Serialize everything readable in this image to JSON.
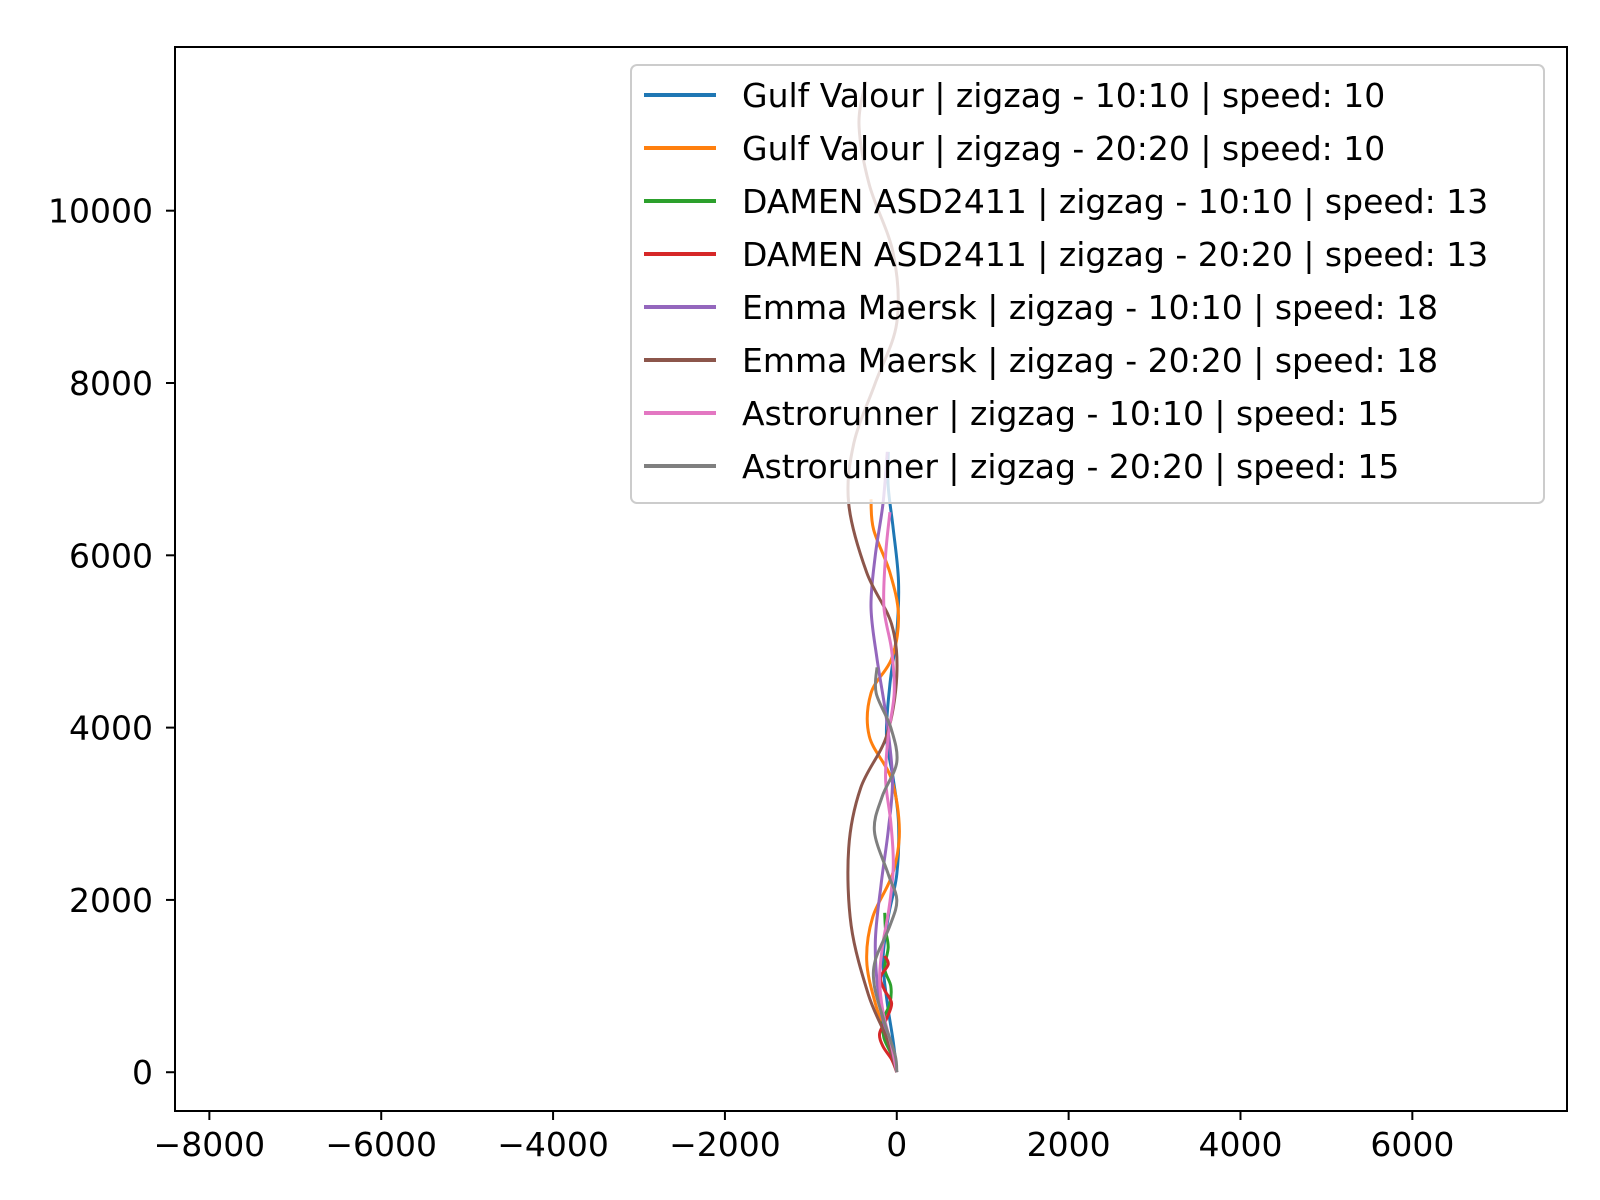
{
  "chart_data": {
    "type": "line",
    "title": "",
    "xlabel": "",
    "ylabel": "",
    "xlim": [
      -8400,
      7800
    ],
    "ylim": [
      -450,
      11900
    ],
    "xticks": [
      -8000,
      -6000,
      -4000,
      -2000,
      0,
      2000,
      4000,
      6000
    ],
    "yticks": [
      0,
      2000,
      4000,
      6000,
      8000,
      10000
    ],
    "xtick_labels": [
      "−8000",
      "−6000",
      "−4000",
      "−2000",
      "0",
      "2000",
      "4000",
      "6000"
    ],
    "ytick_labels": [
      "0",
      "2000",
      "4000",
      "6000",
      "8000",
      "10000"
    ],
    "grid": false,
    "legend_position": "upper right",
    "series": [
      {
        "name": "Gulf Valour | zigzag - 10:10 | speed: 10",
        "color": "#1f77b4",
        "points": [
          [
            0,
            0
          ],
          [
            -40,
            350
          ],
          [
            -110,
            800
          ],
          [
            -160,
            1300
          ],
          [
            -100,
            1800
          ],
          [
            0,
            2300
          ],
          [
            20,
            2900
          ],
          [
            -40,
            3400
          ],
          [
            -120,
            3900
          ],
          [
            -80,
            4500
          ],
          [
            0,
            5100
          ],
          [
            20,
            5700
          ],
          [
            -40,
            6300
          ],
          [
            -100,
            6800
          ],
          [
            -100,
            7200
          ]
        ]
      },
      {
        "name": "Gulf Valour | zigzag - 20:20 | speed: 10",
        "color": "#ff7f0e",
        "points": [
          [
            0,
            0
          ],
          [
            -80,
            300
          ],
          [
            -250,
            800
          ],
          [
            -350,
            1300
          ],
          [
            -280,
            1800
          ],
          [
            -50,
            2300
          ],
          [
            30,
            2800
          ],
          [
            -60,
            3400
          ],
          [
            -320,
            3900
          ],
          [
            -300,
            4400
          ],
          [
            -60,
            4800
          ],
          [
            20,
            5300
          ],
          [
            -80,
            5800
          ],
          [
            -270,
            6300
          ],
          [
            -300,
            6650
          ]
        ]
      },
      {
        "name": "DAMEN ASD2411 | zigzag - 10:10 | speed: 13",
        "color": "#2ca02c",
        "points": [
          [
            0,
            0
          ],
          [
            -60,
            200
          ],
          [
            -150,
            400
          ],
          [
            -160,
            600
          ],
          [
            -80,
            800
          ],
          [
            -70,
            1000
          ],
          [
            -140,
            1200
          ],
          [
            -100,
            1450
          ],
          [
            -130,
            1650
          ],
          [
            -140,
            1850
          ]
        ]
      },
      {
        "name": "DAMEN ASD2411 | zigzag - 20:20 | speed: 13",
        "color": "#d62728",
        "points": [
          [
            0,
            0
          ],
          [
            -60,
            150
          ],
          [
            -160,
            300
          ],
          [
            -200,
            450
          ],
          [
            -120,
            620
          ],
          [
            -60,
            800
          ],
          [
            -140,
            950
          ],
          [
            -190,
            1100
          ],
          [
            -100,
            1250
          ],
          [
            -140,
            1350
          ]
        ]
      },
      {
        "name": "Emma Maersk | zigzag - 10:10 | speed: 18",
        "color": "#9467bd",
        "points": [
          [
            0,
            0
          ],
          [
            -100,
            400
          ],
          [
            -200,
            800
          ],
          [
            -250,
            1500
          ],
          [
            -180,
            2200
          ],
          [
            -100,
            2800
          ],
          [
            -50,
            3400
          ],
          [
            -120,
            4100
          ],
          [
            -230,
            4800
          ],
          [
            -300,
            5400
          ],
          [
            -250,
            6000
          ],
          [
            -160,
            6600
          ],
          [
            -110,
            7200
          ]
        ]
      },
      {
        "name": "Emma Maersk | zigzag - 20:20 | speed: 18",
        "color": "#8c564b",
        "points": [
          [
            0,
            0
          ],
          [
            -120,
            400
          ],
          [
            -330,
            900
          ],
          [
            -530,
            1700
          ],
          [
            -560,
            2600
          ],
          [
            -420,
            3300
          ],
          [
            -120,
            3900
          ],
          [
            0,
            4600
          ],
          [
            -60,
            5200
          ],
          [
            -350,
            5800
          ],
          [
            -560,
            6600
          ],
          [
            -500,
            7300
          ],
          [
            -250,
            8000
          ],
          [
            0,
            8700
          ],
          [
            -40,
            9500
          ],
          [
            -320,
            10300
          ],
          [
            -440,
            11000
          ],
          [
            -360,
            11500
          ]
        ]
      },
      {
        "name": "Astrorunner | zigzag - 10:10 | speed: 15",
        "color": "#e377c2",
        "points": [
          [
            0,
            0
          ],
          [
            -60,
            300
          ],
          [
            -160,
            700
          ],
          [
            -200,
            1100
          ],
          [
            -160,
            1500
          ],
          [
            -90,
            1900
          ],
          [
            -40,
            2400
          ],
          [
            -70,
            2900
          ],
          [
            -130,
            3400
          ],
          [
            -100,
            3900
          ],
          [
            -30,
            4400
          ],
          [
            -60,
            4900
          ],
          [
            -150,
            5400
          ],
          [
            -130,
            6000
          ],
          [
            -80,
            6500
          ]
        ]
      },
      {
        "name": "Astrorunner | zigzag - 20:20 | speed: 15",
        "color": "#7f7f7f",
        "points": [
          [
            0,
            0
          ],
          [
            -20,
            200
          ],
          [
            -150,
            600
          ],
          [
            -260,
            1000
          ],
          [
            -250,
            1300
          ],
          [
            -80,
            1700
          ],
          [
            0,
            2000
          ],
          [
            -100,
            2300
          ],
          [
            -260,
            2800
          ],
          [
            -170,
            3200
          ],
          [
            0,
            3600
          ],
          [
            -70,
            4000
          ],
          [
            -240,
            4400
          ],
          [
            -230,
            4700
          ]
        ]
      }
    ]
  }
}
